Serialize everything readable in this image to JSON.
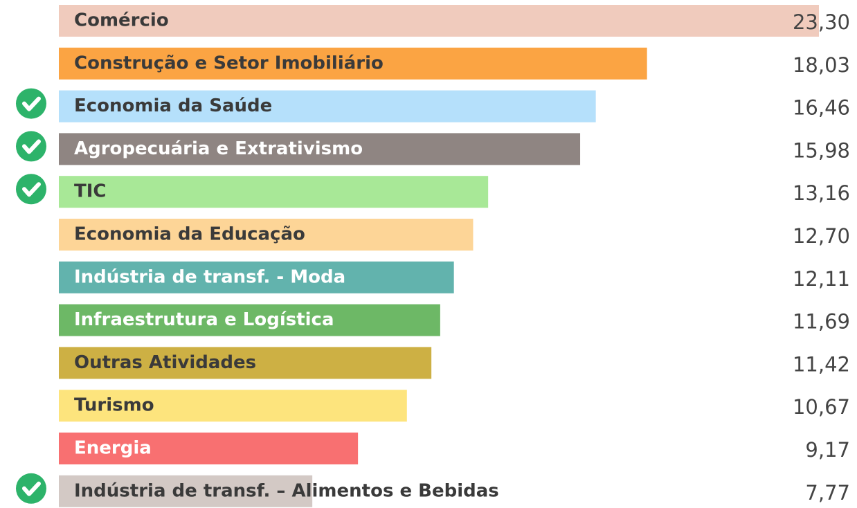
{
  "chart_data": {
    "type": "barh",
    "categories": [
      "Comércio",
      "Construção e Setor Imobiliário",
      "Economia da Saúde",
      "Agropecuária e Extrativismo",
      "TIC",
      "Economia da Educação",
      "Indústria de transf. - Moda",
      "Infraestrutura e Logística",
      "Outras Atividades",
      "Turismo",
      "Energia",
      "Indústria de transf. – Alimentos e Bebidas"
    ],
    "values": [
      23.3,
      18.03,
      16.46,
      15.98,
      13.16,
      12.7,
      12.11,
      11.69,
      11.42,
      10.67,
      9.17,
      7.77
    ],
    "value_labels": [
      "23,30",
      "18,03",
      "16,46",
      "15,98",
      "13,16",
      "12,70",
      "12,11",
      "11,69",
      "11,42",
      "10,67",
      "9,17",
      "7,77"
    ],
    "colors": [
      "#f0cbbd",
      "#fba443",
      "#b5e0fb",
      "#8f8582",
      "#a8e897",
      "#fdd597",
      "#62b3ad",
      "#6db866",
      "#cdb044",
      "#fde47d",
      "#f87071",
      "#d3c9c5"
    ],
    "checked": [
      false,
      false,
      true,
      true,
      true,
      false,
      false,
      false,
      false,
      false,
      false,
      true
    ]
  }
}
